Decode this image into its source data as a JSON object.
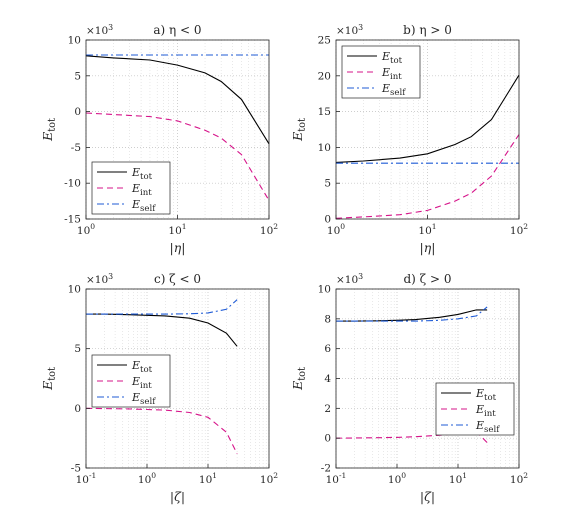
{
  "chart_data": [
    {
      "type": "line",
      "title": "a)  η < 0",
      "xlabel": "|η|",
      "ylabel": "E_tot",
      "yexp": "×10³",
      "xscale": "log",
      "xlim": [
        1,
        100
      ],
      "ylim": [
        -15,
        10
      ],
      "yticks": [
        -15,
        -10,
        -5,
        0,
        5,
        10
      ],
      "xticks": [
        1,
        10,
        100
      ],
      "grid": true,
      "legend_position": "bottom-left",
      "series": [
        {
          "name": "E_tot",
          "style": "solid",
          "color": "#000000",
          "x": [
            1,
            2,
            5,
            10,
            20,
            30,
            50,
            100
          ],
          "y": [
            7.8,
            7.5,
            7.2,
            6.5,
            5.4,
            4.2,
            1.7,
            -4.5
          ]
        },
        {
          "name": "E_int",
          "style": "dashed",
          "color": "#d6148a",
          "x": [
            1,
            2,
            5,
            10,
            20,
            30,
            50,
            100
          ],
          "y": [
            -0.2,
            -0.4,
            -0.7,
            -1.3,
            -2.6,
            -3.7,
            -6.0,
            -12.4
          ]
        },
        {
          "name": "E_self",
          "style": "dashdot",
          "color": "#1f5bd6",
          "x": [
            1,
            2,
            5,
            10,
            20,
            30,
            50,
            100
          ],
          "y": [
            7.9,
            7.9,
            7.9,
            7.9,
            7.9,
            7.9,
            7.9,
            7.9
          ]
        }
      ]
    },
    {
      "type": "line",
      "title": "b)  η > 0",
      "xlabel": "|η|",
      "ylabel": "E_tot",
      "yexp": "×10³",
      "xscale": "log",
      "xlim": [
        1,
        100
      ],
      "ylim": [
        0,
        25
      ],
      "yticks": [
        0,
        5,
        10,
        15,
        20,
        25
      ],
      "xticks": [
        1,
        10,
        100
      ],
      "grid": true,
      "legend_position": "top-left",
      "series": [
        {
          "name": "E_tot",
          "style": "solid",
          "color": "#000000",
          "x": [
            1,
            2,
            5,
            10,
            20,
            30,
            50,
            100
          ],
          "y": [
            7.9,
            8.1,
            8.5,
            9.1,
            10.4,
            11.5,
            13.9,
            20.1
          ]
        },
        {
          "name": "E_int",
          "style": "dashed",
          "color": "#d6148a",
          "x": [
            1,
            2,
            5,
            10,
            20,
            30,
            50,
            100
          ],
          "y": [
            0.1,
            0.3,
            0.6,
            1.2,
            2.5,
            3.6,
            6.0,
            11.8
          ]
        },
        {
          "name": "E_self",
          "style": "dashdot",
          "color": "#1f5bd6",
          "x": [
            1,
            2,
            5,
            10,
            20,
            30,
            50,
            100
          ],
          "y": [
            7.8,
            7.8,
            7.8,
            7.8,
            7.8,
            7.8,
            7.8,
            7.8
          ]
        }
      ]
    },
    {
      "type": "line",
      "title": "c)  ζ < 0",
      "xlabel": "|ζ|",
      "ylabel": "E_tot",
      "yexp": "×10³",
      "xscale": "log",
      "xlim": [
        0.1,
        100
      ],
      "ylim": [
        -5,
        10
      ],
      "yticks": [
        -5,
        0,
        5,
        10
      ],
      "xticks": [
        0.1,
        1,
        10,
        100
      ],
      "grid": true,
      "legend_position": "middle-left",
      "series": [
        {
          "name": "E_tot",
          "style": "solid",
          "color": "#000000",
          "x": [
            0.1,
            0.2,
            0.5,
            1,
            2,
            5,
            10,
            20,
            30
          ],
          "y": [
            7.9,
            7.9,
            7.85,
            7.8,
            7.75,
            7.55,
            7.15,
            6.3,
            5.2
          ]
        },
        {
          "name": "E_int",
          "style": "dashed",
          "color": "#d6148a",
          "x": [
            0.1,
            0.2,
            0.5,
            1,
            2,
            5,
            10,
            20,
            30
          ],
          "y": [
            0.0,
            -0.02,
            -0.05,
            -0.1,
            -0.15,
            -0.35,
            -0.75,
            -2.0,
            -3.8
          ]
        },
        {
          "name": "E_self",
          "style": "dashdot",
          "color": "#1f5bd6",
          "x": [
            0.1,
            0.2,
            0.5,
            1,
            2,
            5,
            10,
            20,
            30
          ],
          "y": [
            7.9,
            7.9,
            7.9,
            7.9,
            7.9,
            7.92,
            8.0,
            8.3,
            9.1
          ]
        }
      ]
    },
    {
      "type": "line",
      "title": "d)  ζ > 0",
      "xlabel": "|ζ|",
      "ylabel": "E_tot",
      "yexp": "×10³",
      "xscale": "log",
      "xlim": [
        0.1,
        100
      ],
      "ylim": [
        -2,
        10
      ],
      "yticks": [
        -2,
        0,
        2,
        4,
        6,
        8,
        10
      ],
      "xticks": [
        0.1,
        1,
        10,
        100
      ],
      "grid": true,
      "legend_position": "middle-right",
      "series": [
        {
          "name": "E_tot",
          "style": "solid",
          "color": "#000000",
          "x": [
            0.1,
            0.2,
            0.5,
            1,
            2,
            5,
            10,
            20,
            30
          ],
          "y": [
            7.85,
            7.85,
            7.87,
            7.9,
            7.95,
            8.1,
            8.3,
            8.6,
            8.6
          ]
        },
        {
          "name": "E_int",
          "style": "dashed",
          "color": "#d6148a",
          "x": [
            0.1,
            0.2,
            0.5,
            1,
            2,
            5,
            10,
            20,
            30
          ],
          "y": [
            0.0,
            0.01,
            0.03,
            0.05,
            0.1,
            0.2,
            0.3,
            0.45,
            -0.3
          ]
        },
        {
          "name": "E_self",
          "style": "dashdot",
          "color": "#1f5bd6",
          "x": [
            0.1,
            0.2,
            0.5,
            1,
            2,
            5,
            10,
            20,
            30
          ],
          "y": [
            7.85,
            7.85,
            7.85,
            7.85,
            7.85,
            7.9,
            8.0,
            8.2,
            8.8
          ]
        }
      ]
    }
  ]
}
